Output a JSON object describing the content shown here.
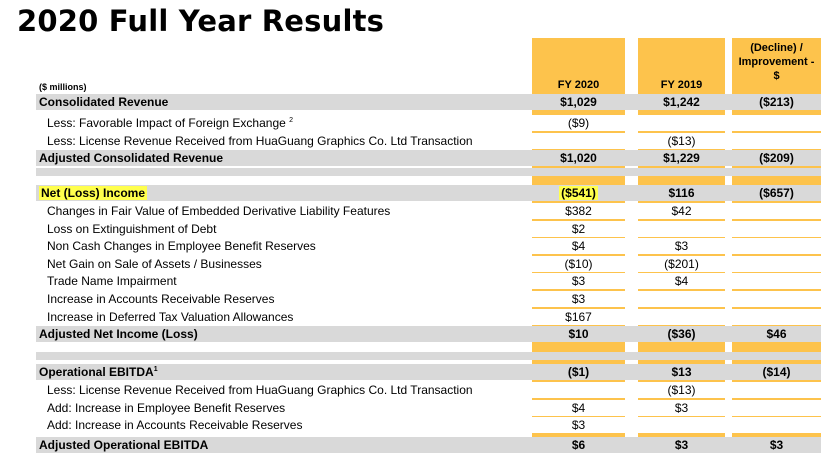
{
  "title": "2020 Full Year Results",
  "units": "($ millions)",
  "columns": {
    "fy2020": "FY 2020",
    "fy2019": "FY 2019",
    "change_line1": "(Decline) /",
    "change_line2": "Improvement -",
    "change_line3": "$"
  },
  "rows": [
    {
      "label": "Consolidated Revenue",
      "fy2020": "$1,029",
      "fy2019": "$1,242",
      "change": "($213)"
    },
    {
      "label": "Less: Favorable Impact of Foreign Exchange",
      "sup": "2",
      "fy2020": "($9)",
      "fy2019": "",
      "change": ""
    },
    {
      "label": "Less: License Revenue Received from HuaGuang Graphics Co. Ltd Transaction",
      "fy2020": "",
      "fy2019": "($13)",
      "change": ""
    },
    {
      "label": "Adjusted Consolidated Revenue",
      "fy2020": "$1,020",
      "fy2019": "$1,229",
      "change": "($209)"
    },
    {
      "label": "Net (Loss) Income",
      "fy2020": "($541)",
      "fy2019": "$116",
      "change": "($657)"
    },
    {
      "label": "Changes in Fair Value of Embedded Derivative Liability Features",
      "fy2020": "$382",
      "fy2019": "$42",
      "change": ""
    },
    {
      "label": "Loss on Extinguishment of Debt",
      "fy2020": "$2",
      "fy2019": "",
      "change": ""
    },
    {
      "label": "Non Cash Changes in Employee Benefit Reserves",
      "fy2020": "$4",
      "fy2019": "$3",
      "change": ""
    },
    {
      "label": "Net Gain on Sale of Assets / Businesses",
      "fy2020": "($10)",
      "fy2019": "($201)",
      "change": ""
    },
    {
      "label": "Trade Name Impairment",
      "fy2020": "$3",
      "fy2019": "$4",
      "change": ""
    },
    {
      "label": "Increase in Accounts Receivable Reserves",
      "fy2020": "$3",
      "fy2019": "",
      "change": ""
    },
    {
      "label": "Increase in Deferred Tax Valuation Allowances",
      "fy2020": "$167",
      "fy2019": "",
      "change": ""
    },
    {
      "label": "Adjusted Net Income (Loss)",
      "fy2020": "$10",
      "fy2019": "($36)",
      "change": "$46"
    },
    {
      "label": "Operational EBITDA",
      "sup": "1",
      "fy2020": "($1)",
      "fy2019": "$13",
      "change": "($14)"
    },
    {
      "label": "Less: License Revenue Received from HuaGuang Graphics Co. Ltd Transaction",
      "fy2020": "",
      "fy2019": "($13)",
      "change": ""
    },
    {
      "label": "Add: Increase in Employee Benefit Reserves",
      "fy2020": "$4",
      "fy2019": "$3",
      "change": ""
    },
    {
      "label": "Add: Increase in Accounts Receivable Reserves",
      "fy2020": "$3",
      "fy2019": "",
      "change": ""
    },
    {
      "label": "Adjusted Operational EBITDA",
      "fy2020": "$6",
      "fy2019": "$3",
      "change": "$3"
    }
  ],
  "colors": {
    "header": "#fdc34c",
    "band": "#d9d9d9",
    "highlight": "#ffff4d"
  }
}
